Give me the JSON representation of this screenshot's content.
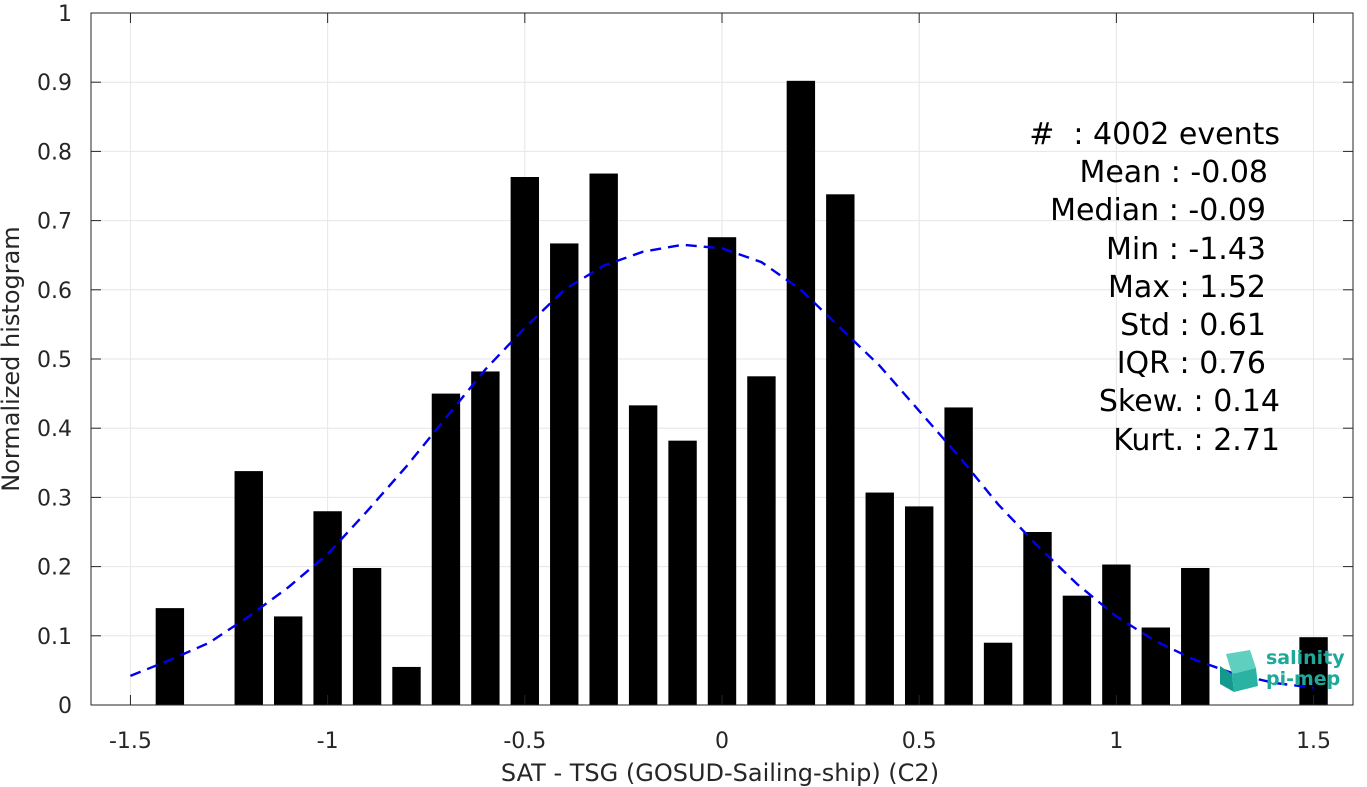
{
  "chart_data": {
    "type": "bar",
    "xlabel": "SAT - TSG (GOSUD-Sailing-ship) (C2)",
    "ylabel": "Normalized histogram",
    "xlim": [
      -1.6,
      1.6
    ],
    "ylim": [
      0,
      1
    ],
    "xticks": [
      -1.5,
      -1,
      -0.5,
      0,
      0.5,
      1,
      1.5
    ],
    "xtick_labels": [
      "-1.5",
      "-1",
      "-0.5",
      "0",
      "0.5",
      "1",
      "1.5"
    ],
    "yticks": [
      0,
      0.1,
      0.2,
      0.3,
      0.4,
      0.5,
      0.6,
      0.7,
      0.8,
      0.9,
      1
    ],
    "ytick_labels": [
      "0",
      "0.1",
      "0.2",
      "0.3",
      "0.4",
      "0.5",
      "0.6",
      "0.7",
      "0.8",
      "0.9",
      "1"
    ],
    "grid": true,
    "bar_color": "#000000",
    "bars": [
      {
        "x": -1.4,
        "y": 0.14
      },
      {
        "x": -1.2,
        "y": 0.338
      },
      {
        "x": -1.1,
        "y": 0.128
      },
      {
        "x": -1.0,
        "y": 0.28
      },
      {
        "x": -0.9,
        "y": 0.198
      },
      {
        "x": -0.8,
        "y": 0.055
      },
      {
        "x": -0.7,
        "y": 0.45
      },
      {
        "x": -0.6,
        "y": 0.482
      },
      {
        "x": -0.5,
        "y": 0.763
      },
      {
        "x": -0.4,
        "y": 0.667
      },
      {
        "x": -0.3,
        "y": 0.768
      },
      {
        "x": -0.2,
        "y": 0.433
      },
      {
        "x": -0.1,
        "y": 0.382
      },
      {
        "x": 0.0,
        "y": 0.676
      },
      {
        "x": 0.1,
        "y": 0.475
      },
      {
        "x": 0.2,
        "y": 0.902
      },
      {
        "x": 0.3,
        "y": 0.738
      },
      {
        "x": 0.4,
        "y": 0.307
      },
      {
        "x": 0.5,
        "y": 0.287
      },
      {
        "x": 0.6,
        "y": 0.43
      },
      {
        "x": 0.7,
        "y": 0.09
      },
      {
        "x": 0.8,
        "y": 0.25
      },
      {
        "x": 0.9,
        "y": 0.158
      },
      {
        "x": 1.0,
        "y": 0.203
      },
      {
        "x": 1.1,
        "y": 0.112
      },
      {
        "x": 1.2,
        "y": 0.198
      },
      {
        "x": 1.5,
        "y": 0.098
      }
    ],
    "fit_curve": {
      "style": "dashed",
      "color": "#0000ee",
      "x": [
        -1.5,
        -1.4,
        -1.3,
        -1.2,
        -1.1,
        -1.0,
        -0.9,
        -0.8,
        -0.7,
        -0.6,
        -0.5,
        -0.4,
        -0.3,
        -0.2,
        -0.1,
        0.0,
        0.1,
        0.2,
        0.3,
        0.4,
        0.5,
        0.6,
        0.7,
        0.8,
        0.9,
        1.0,
        1.1,
        1.2,
        1.3,
        1.4,
        1.5
      ],
      "y": [
        0.042,
        0.065,
        0.09,
        0.128,
        0.17,
        0.218,
        0.28,
        0.345,
        0.415,
        0.485,
        0.545,
        0.6,
        0.635,
        0.655,
        0.665,
        0.66,
        0.64,
        0.6,
        0.545,
        0.49,
        0.425,
        0.36,
        0.29,
        0.23,
        0.175,
        0.128,
        0.092,
        0.065,
        0.045,
        0.032,
        0.025
      ]
    }
  },
  "stats": [
    "#  : 4002 events",
    "Mean : -0.08",
    "Median : -0.09",
    "Min : -1.43",
    "Max : 1.52",
    "Std : 0.61",
    "IQR : 0.76",
    "Skew. : 0.14",
    "Kurt. : 2.71"
  ],
  "logo": {
    "line1": "salinity",
    "line2": "pi-mep",
    "color": "#1fa89a"
  }
}
